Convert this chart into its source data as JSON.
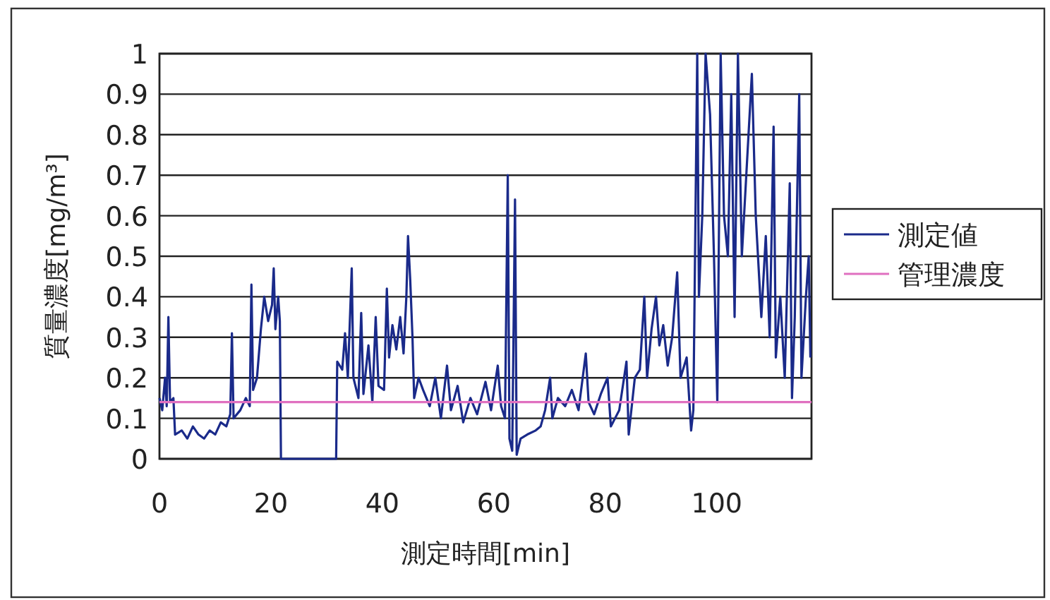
{
  "chart_data": {
    "type": "line",
    "xlabel": "測定時間[min]",
    "ylabel": "質量濃度[mg/m³]",
    "xlim": [
      0,
      117
    ],
    "xticks": [
      0,
      20,
      40,
      60,
      80,
      100
    ],
    "ylim": [
      0,
      1
    ],
    "yticks": [
      0,
      0.1,
      0.2,
      0.3,
      0.4,
      0.5,
      0.6,
      0.7,
      0.8,
      0.9,
      1
    ],
    "grid": "y",
    "legend": "right",
    "line_style": "solid",
    "series": [
      {
        "name": "測定値",
        "color": "#1a2a8a",
        "x": [
          0,
          0.5,
          1,
          1.3,
          1.6,
          1.9,
          2.5,
          2.8,
          4,
          5,
          6,
          7,
          8,
          9,
          10,
          11,
          12,
          12.7,
          13,
          13.3,
          14.5,
          15.5,
          16.2,
          16.5,
          16.8,
          17.5,
          18.2,
          18.8,
          19.5,
          20.2,
          20.5,
          20.8,
          21.3,
          21.6,
          21.8,
          31.7,
          31.9,
          32.8,
          33.3,
          33.8,
          34.5,
          34.8,
          35.7,
          36.2,
          36.6,
          37.5,
          38.2,
          38.8,
          39.3,
          40.3,
          40.8,
          41.2,
          41.8,
          42.5,
          43.2,
          43.8,
          44.3,
          44.6,
          45,
          45.4,
          45.7,
          46.5,
          47.3,
          48.5,
          49.5,
          50.5,
          51.6,
          52.3,
          53.5,
          54.5,
          55.8,
          57,
          58.5,
          59.5,
          60.7,
          61.3,
          62,
          62.5,
          62.8,
          63.3,
          63.8,
          64.1,
          64.8,
          66,
          67.5,
          68.4,
          69.2,
          70.1,
          70.5,
          71.5,
          72.8,
          74,
          75.2,
          76.5,
          77,
          78,
          79.2,
          80.4,
          81,
          82.5,
          83.8,
          84.2,
          85.3,
          86.2,
          87,
          87.5,
          88.3,
          89.1,
          89.7,
          90.4,
          91.2,
          92,
          92.9,
          93.5,
          94.6,
          95.4,
          95.8,
          96.1,
          96.5,
          96.8,
          97.4,
          98,
          98.8,
          99.5,
          100.1,
          100.7,
          101.3,
          102,
          102.6,
          103.2,
          103.8,
          104.5,
          105.3,
          106.3,
          107,
          108,
          108.8,
          109.5,
          110.2,
          110.6,
          111.4,
          112.2,
          113.1,
          113.5,
          114,
          114.8,
          115.2,
          116,
          116.5,
          116.8
        ],
        "values": [
          0.15,
          0.12,
          0.2,
          0.13,
          0.35,
          0.14,
          0.15,
          0.06,
          0.07,
          0.05,
          0.08,
          0.06,
          0.05,
          0.07,
          0.06,
          0.09,
          0.08,
          0.11,
          0.31,
          0.1,
          0.12,
          0.15,
          0.13,
          0.43,
          0.17,
          0.2,
          0.32,
          0.4,
          0.34,
          0.38,
          0.47,
          0.32,
          0.4,
          0.34,
          0,
          0,
          0.24,
          0.22,
          0.31,
          0.2,
          0.47,
          0.2,
          0.15,
          0.36,
          0.16,
          0.28,
          0.14,
          0.35,
          0.18,
          0.17,
          0.42,
          0.25,
          0.33,
          0.27,
          0.35,
          0.26,
          0.4,
          0.55,
          0.44,
          0.3,
          0.15,
          0.2,
          0.17,
          0.13,
          0.2,
          0.1,
          0.23,
          0.12,
          0.18,
          0.09,
          0.15,
          0.11,
          0.19,
          0.12,
          0.23,
          0.13,
          0.1,
          0.7,
          0.05,
          0.02,
          0.64,
          0.01,
          0.05,
          0.06,
          0.07,
          0.08,
          0.12,
          0.2,
          0.1,
          0.15,
          0.13,
          0.17,
          0.12,
          0.26,
          0.14,
          0.11,
          0.16,
          0.2,
          0.08,
          0.12,
          0.24,
          0.06,
          0.2,
          0.22,
          0.4,
          0.2,
          0.32,
          0.4,
          0.28,
          0.33,
          0.23,
          0.3,
          0.46,
          0.2,
          0.25,
          0.07,
          0.12,
          0.5,
          1,
          0.4,
          0.6,
          1,
          0.85,
          0.5,
          0.14,
          1,
          0.6,
          0.5,
          0.9,
          0.35,
          1,
          0.5,
          0.7,
          0.95,
          0.6,
          0.35,
          0.55,
          0.3,
          0.82,
          0.25,
          0.4,
          0.2,
          0.68,
          0.15,
          0.35,
          0.9,
          0.2,
          0.4,
          0.5,
          0.25
        ]
      },
      {
        "name": "管理濃度",
        "color": "#e070c0",
        "x": [
          0,
          117
        ],
        "values": [
          0.14,
          0.14
        ]
      }
    ]
  }
}
